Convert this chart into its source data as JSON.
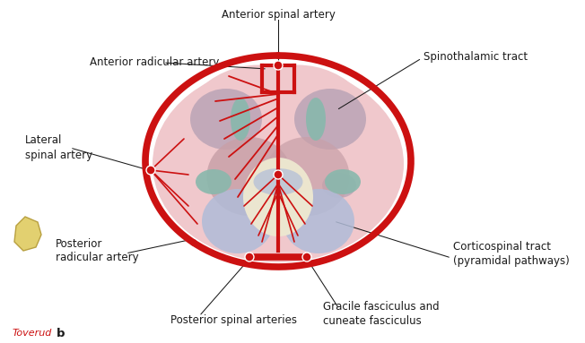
{
  "bg_color": "#ffffff",
  "cord_fill": "#f0c8cc",
  "cord_edge": "#cc1111",
  "gray_matter_fill": "#c8a0a8",
  "spinothalamic_fill": "#c0a8b8",
  "teal_fill": "#88b8ac",
  "blue_fill": "#b0bcd8",
  "yellow_fill": "#ede8d0",
  "artery_color": "#cc1111",
  "text_color": "#1a1a1a",
  "red_label_color": "#cc1111",
  "font_size": 8.5,
  "labels": {
    "anterior_spinal_artery": "Anterior spinal artery",
    "anterior_radicular_artery": "Anterior radicular artery",
    "lateral_spinal_artery": "Lateral\nspinal artery",
    "posterior_radicular_artery": "Posterior\nradicular artery",
    "posterior_spinal_arteries": "Posterior spinal arteries",
    "spinothalamic_tract": "Spinothalamic tract",
    "corticospinal_tract": "Corticospinal tract\n(pyramidal pathways)",
    "gracile_fasciculus": "Gracile fasciculus and\ncuneate fasciculus",
    "toverud": "Toverud",
    "b_label": "b"
  }
}
